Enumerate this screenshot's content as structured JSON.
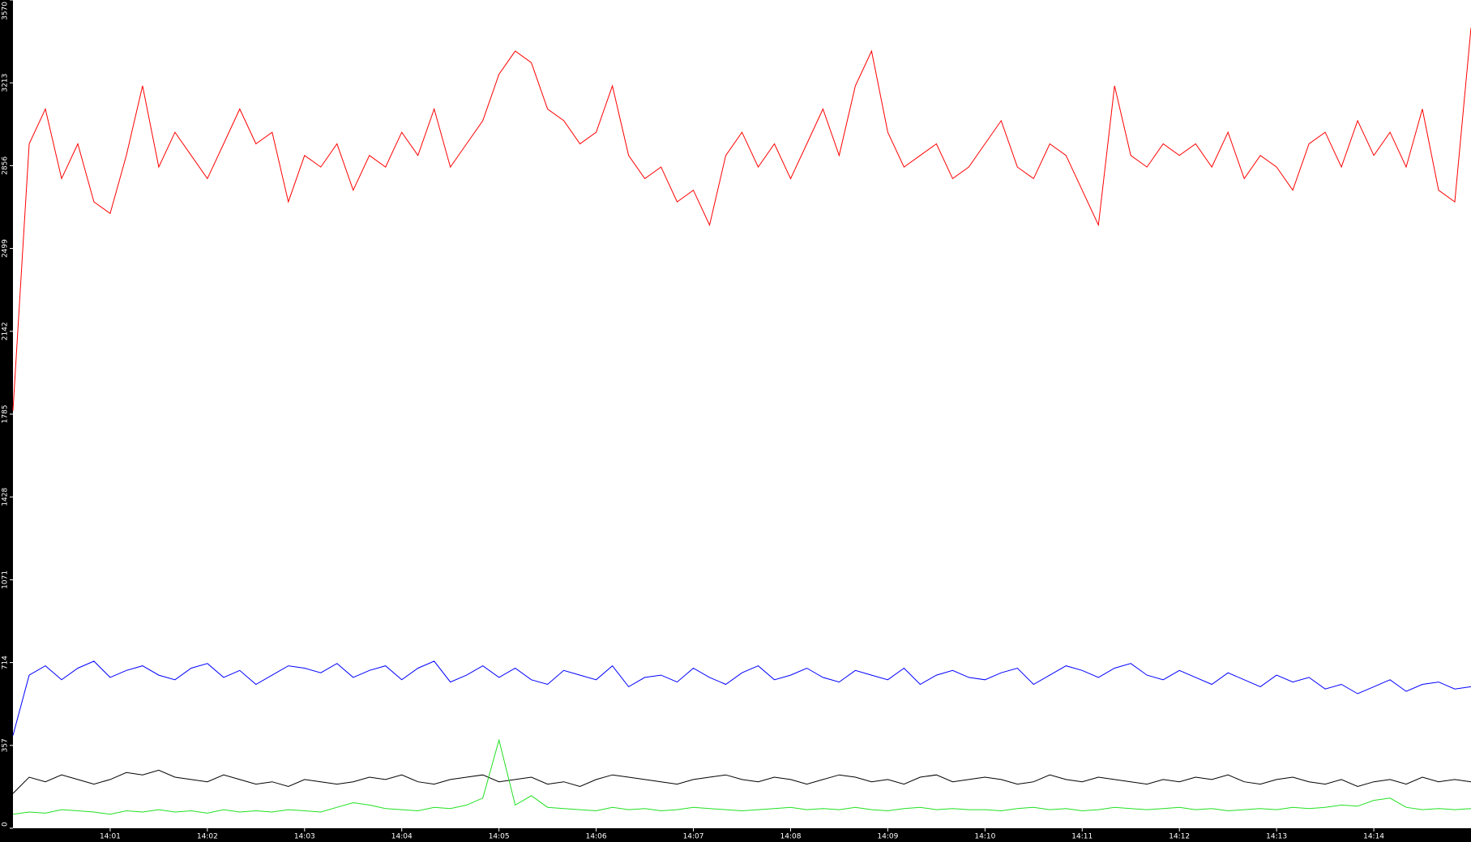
{
  "chart_data": {
    "type": "line",
    "categories": [
      null,
      null,
      null,
      null,
      null,
      null,
      "14:01",
      null,
      null,
      null,
      null,
      null,
      "14:02",
      null,
      null,
      null,
      null,
      null,
      "14:03",
      null,
      null,
      null,
      null,
      null,
      "14:04",
      null,
      null,
      null,
      null,
      null,
      "14:05",
      null,
      null,
      null,
      null,
      null,
      "14:06",
      null,
      null,
      null,
      null,
      null,
      "14:07",
      null,
      null,
      null,
      null,
      null,
      "14:08",
      null,
      null,
      null,
      null,
      null,
      "14:09",
      null,
      null,
      null,
      null,
      null,
      "14:10",
      null,
      null,
      null,
      null,
      null,
      "14:11",
      null,
      null,
      null,
      null,
      null,
      "14:12",
      null,
      null,
      null,
      null,
      null,
      "14:13",
      null,
      null,
      null,
      null,
      null,
      "14:14",
      null,
      null,
      null,
      null,
      null,
      null
    ],
    "series": [
      {
        "color": "#ff0000",
        "values": [
          1800,
          2950,
          3100,
          2800,
          2950,
          2700,
          2650,
          2900,
          3200,
          2850,
          3000,
          2900,
          2800,
          2950,
          3100,
          2950,
          3000,
          2700,
          2900,
          2850,
          2950,
          2750,
          2900,
          2850,
          3000,
          2900,
          3100,
          2850,
          2950,
          3050,
          3250,
          3350,
          3300,
          3100,
          3050,
          2950,
          3000,
          3200,
          2900,
          2800,
          2850,
          2700,
          2750,
          2600,
          2900,
          3000,
          2850,
          2950,
          2800,
          2950,
          3100,
          2900,
          3200,
          3350,
          3000,
          2850,
          2900,
          2950,
          2800,
          2850,
          2950,
          3050,
          2850,
          2800,
          2950,
          2900,
          2750,
          2600,
          3200,
          2900,
          2850,
          2950,
          2900,
          2950,
          2850,
          3000,
          2800,
          2900,
          2850,
          2750,
          2950,
          3000,
          2850,
          3050,
          2900,
          3000,
          2850,
          3100,
          2750,
          2700,
          3450
        ]
      },
      {
        "color": "#0000ff",
        "values": [
          400,
          660,
          700,
          640,
          690,
          720,
          650,
          680,
          700,
          660,
          640,
          690,
          710,
          650,
          680,
          620,
          660,
          700,
          690,
          670,
          710,
          650,
          680,
          700,
          640,
          690,
          720,
          630,
          660,
          700,
          650,
          690,
          640,
          620,
          680,
          660,
          640,
          700,
          610,
          650,
          660,
          630,
          690,
          650,
          620,
          670,
          700,
          640,
          660,
          690,
          650,
          630,
          680,
          660,
          640,
          690,
          620,
          660,
          680,
          650,
          640,
          670,
          690,
          620,
          660,
          700,
          680,
          650,
          690,
          710,
          660,
          640,
          680,
          650,
          620,
          670,
          640,
          610,
          660,
          630,
          650,
          600,
          620,
          580,
          610,
          640,
          590,
          620,
          630,
          600,
          610
        ]
      },
      {
        "color": "#000000",
        "values": [
          150,
          220,
          200,
          230,
          210,
          190,
          210,
          240,
          230,
          250,
          220,
          210,
          200,
          230,
          210,
          190,
          200,
          180,
          210,
          200,
          190,
          200,
          220,
          210,
          230,
          200,
          190,
          210,
          220,
          230,
          200,
          210,
          220,
          190,
          200,
          180,
          210,
          230,
          220,
          210,
          200,
          190,
          210,
          220,
          230,
          210,
          200,
          220,
          210,
          190,
          210,
          230,
          220,
          200,
          210,
          190,
          220,
          230,
          200,
          210,
          220,
          210,
          190,
          200,
          230,
          210,
          200,
          220,
          210,
          200,
          190,
          210,
          200,
          220,
          210,
          230,
          200,
          190,
          210,
          220,
          200,
          190,
          210,
          180,
          200,
          210,
          190,
          220,
          200,
          210,
          200
        ]
      },
      {
        "color": "#22e022",
        "values": [
          60,
          70,
          65,
          80,
          75,
          70,
          60,
          75,
          70,
          80,
          70,
          75,
          65,
          80,
          70,
          75,
          70,
          80,
          75,
          70,
          90,
          110,
          100,
          85,
          80,
          75,
          90,
          85,
          100,
          130,
          380,
          100,
          140,
          90,
          85,
          80,
          75,
          90,
          80,
          85,
          75,
          80,
          90,
          85,
          80,
          75,
          80,
          85,
          90,
          80,
          85,
          80,
          90,
          80,
          75,
          85,
          90,
          80,
          85,
          80,
          80,
          75,
          85,
          90,
          80,
          85,
          75,
          80,
          90,
          85,
          80,
          85,
          90,
          80,
          85,
          75,
          80,
          85,
          80,
          90,
          85,
          90,
          100,
          95,
          120,
          130,
          90,
          80,
          85,
          80,
          85
        ]
      }
    ],
    "ylim": [
      0,
      3570
    ],
    "yticks": [
      0,
      357,
      714,
      1071,
      1428,
      1785,
      2142,
      2499,
      2856,
      3213,
      3570
    ]
  }
}
